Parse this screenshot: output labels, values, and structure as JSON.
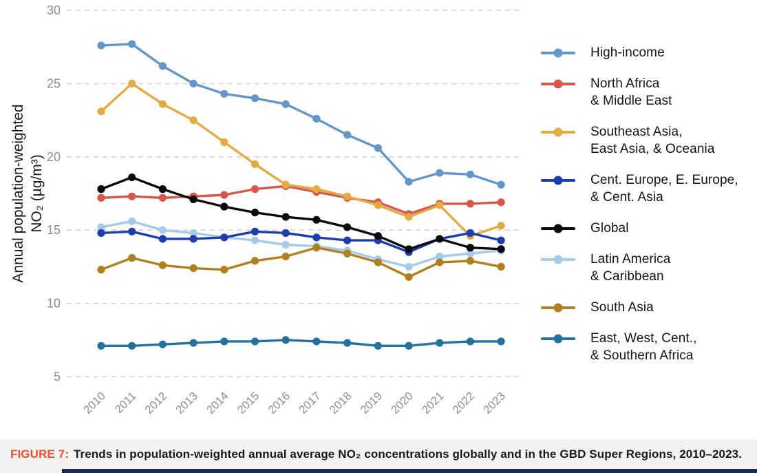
{
  "chart_data": {
    "type": "line",
    "title": "",
    "ylabel_lines": [
      "Annual population-weighted",
      "NO₂ (µg/m³)"
    ],
    "xlabel": "",
    "x": [
      "2010",
      "2011",
      "2012",
      "2013",
      "2014",
      "2015",
      "2016",
      "2017",
      "2018",
      "2019",
      "2020",
      "2021",
      "2022",
      "2023"
    ],
    "ylim": [
      5,
      30
    ],
    "yticks": [
      30,
      25,
      20,
      15,
      10,
      5
    ],
    "grid": "horizontal-dashed",
    "legend_position": "right",
    "series": [
      {
        "name": "High-income",
        "color": "#6496c8",
        "values": [
          27.6,
          27.7,
          26.2,
          25.0,
          24.3,
          24.0,
          23.6,
          22.6,
          21.5,
          20.6,
          18.3,
          18.9,
          18.8,
          18.1
        ]
      },
      {
        "name": "North Africa\n & Middle East",
        "color": "#d8574b",
        "values": [
          17.2,
          17.3,
          17.2,
          17.3,
          17.4,
          17.8,
          18.0,
          17.6,
          17.2,
          16.9,
          16.1,
          16.8,
          16.8,
          16.9
        ]
      },
      {
        "name": "Southeast Asia,\n East Asia, & Oceania",
        "color": "#e3ab43",
        "values": [
          23.1,
          25.0,
          23.6,
          22.5,
          21.0,
          19.5,
          18.1,
          17.8,
          17.3,
          16.7,
          15.9,
          16.7,
          14.6,
          15.3
        ]
      },
      {
        "name": "Cent. Europe, E. Europe,\n & Cent. Asia",
        "color": "#1c3dab",
        "values": [
          14.8,
          14.9,
          14.4,
          14.4,
          14.5,
          14.9,
          14.8,
          14.5,
          14.3,
          14.3,
          13.5,
          14.4,
          14.8,
          14.3
        ]
      },
      {
        "name": "Global",
        "color": "#0a0a0a",
        "values": [
          17.8,
          18.6,
          17.8,
          17.1,
          16.6,
          16.2,
          15.9,
          15.7,
          15.2,
          14.6,
          13.7,
          14.4,
          13.8,
          13.7
        ]
      },
      {
        "name": "Latin America\n & Caribbean",
        "color": "#a6cbea",
        "values": [
          15.2,
          15.6,
          15.0,
          14.8,
          14.5,
          14.3,
          14.0,
          13.9,
          13.6,
          13.0,
          12.5,
          13.2,
          13.4,
          13.6
        ]
      },
      {
        "name": "South Asia",
        "color": "#b0801f",
        "values": [
          12.3,
          13.1,
          12.6,
          12.4,
          12.3,
          12.9,
          13.2,
          13.8,
          13.4,
          12.8,
          11.8,
          12.8,
          12.9,
          12.5
        ]
      },
      {
        "name": "East, West, Cent.,\n & Southern Africa",
        "color": "#24719e",
        "values": [
          7.1,
          7.1,
          7.2,
          7.3,
          7.4,
          7.4,
          7.5,
          7.4,
          7.3,
          7.1,
          7.1,
          7.3,
          7.4,
          7.4
        ]
      }
    ]
  },
  "caption": {
    "label": "FIGURE 7:",
    "label_color": "#e8512b",
    "text": "Trends in population-weighted annual average NO₂ concentrations globally and in the GBD Super Regions, 2010–2023."
  },
  "style_colors": {
    "gridline": "#d2d2d2",
    "tick_label": "#8d8d8d",
    "axis_label": "#1a1a1a",
    "caption_band_background": "#f4f1f3",
    "bottom_bar": "#1d2b52"
  }
}
